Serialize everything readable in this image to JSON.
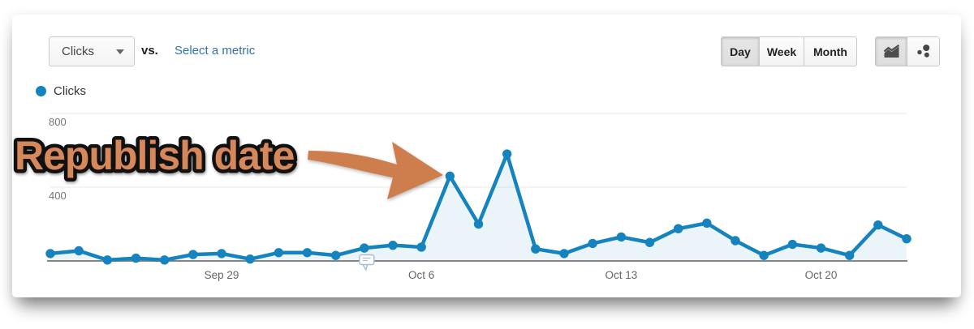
{
  "toolbar": {
    "metric_dropdown": {
      "label": "Clicks"
    },
    "vs_label": "vs.",
    "select_metric_link": "Select a metric",
    "granularity": {
      "options": [
        "Day",
        "Week",
        "Month"
      ],
      "active": "Day"
    },
    "chart_type_buttons": [
      {
        "name": "line-chart",
        "active": true
      },
      {
        "name": "motion-chart",
        "active": false
      }
    ]
  },
  "legend": {
    "label": "Clicks"
  },
  "annotation": {
    "text": "Republish date"
  },
  "colors": {
    "line_blue": "#1583bd",
    "link_blue": "#3272ae",
    "axis_label": "#757575",
    "x_label": "#666666",
    "annotation_orange": "#d6885a",
    "annotation_outline": "#111111",
    "arrow_orange": "#ce7e4d"
  },
  "chart_data": {
    "type": "area",
    "x": [
      "Sep 23",
      "Sep 24",
      "Sep 25",
      "Sep 26",
      "Sep 27",
      "Sep 28",
      "Sep 29",
      "Sep 30",
      "Oct 1",
      "Oct 2",
      "Oct 3",
      "Oct 4",
      "Oct 5",
      "Oct 6",
      "Oct 7",
      "Oct 8",
      "Oct 9",
      "Oct 10",
      "Oct 11",
      "Oct 12",
      "Oct 13",
      "Oct 14",
      "Oct 15",
      "Oct 16",
      "Oct 17",
      "Oct 18",
      "Oct 19",
      "Oct 20",
      "Oct 21",
      "Oct 22",
      "Oct 23"
    ],
    "series": [
      {
        "name": "Clicks",
        "color": "#1583bd",
        "values": [
          40,
          55,
          5,
          15,
          5,
          35,
          40,
          10,
          45,
          45,
          30,
          70,
          85,
          75,
          460,
          200,
          580,
          65,
          40,
          95,
          130,
          100,
          175,
          205,
          110,
          30,
          90,
          70,
          30,
          195,
          120
        ]
      }
    ],
    "ylim": [
      0,
      800
    ],
    "y_ticks": [
      400,
      800
    ],
    "x_tick_labels": [
      "Sep 29",
      "Oct 6",
      "Oct 13",
      "Oct 20"
    ],
    "x_tick_indices": [
      6,
      13,
      20,
      27
    ],
    "grid": true,
    "legend_position": "top-left",
    "annotation_marker_index": 11
  }
}
